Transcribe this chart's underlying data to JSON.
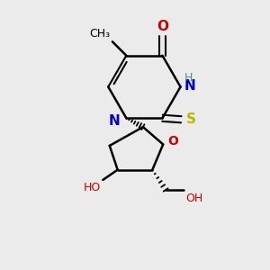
{
  "background_color": "#ebebeb",
  "atom_colors": {
    "C": "#000000",
    "N": "#0000cc",
    "O": "#cc0000",
    "S": "#b8b800",
    "H": "#4a9090"
  },
  "figsize": [
    3.0,
    3.0
  ],
  "dpi": 100,
  "xlim": [
    0,
    10
  ],
  "ylim": [
    0,
    10
  ]
}
